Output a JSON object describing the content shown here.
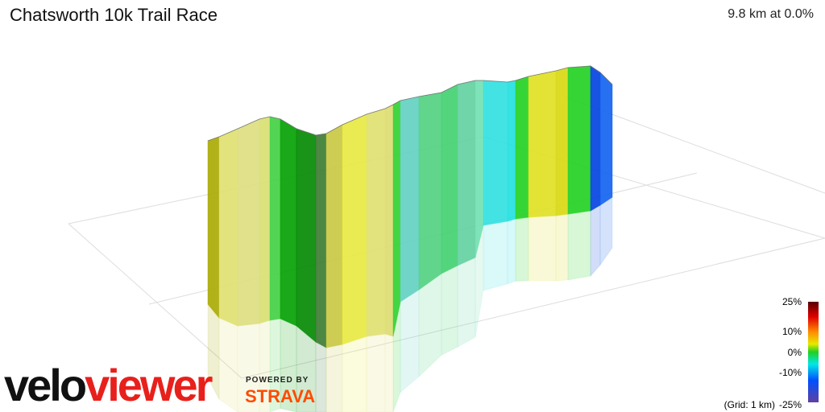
{
  "header": {
    "title": "Chatsworth 10k Trail Race",
    "stat": "9.8 km at 0.0%"
  },
  "legend": {
    "labels": [
      "25%",
      "10%",
      "0%",
      "-10%",
      "-25%"
    ],
    "grid_note": "(Grid: 1 km)"
  },
  "branding": {
    "logo": "veloviewer",
    "powered_by": "POWERED BY",
    "partner": "STRAVA"
  }
}
